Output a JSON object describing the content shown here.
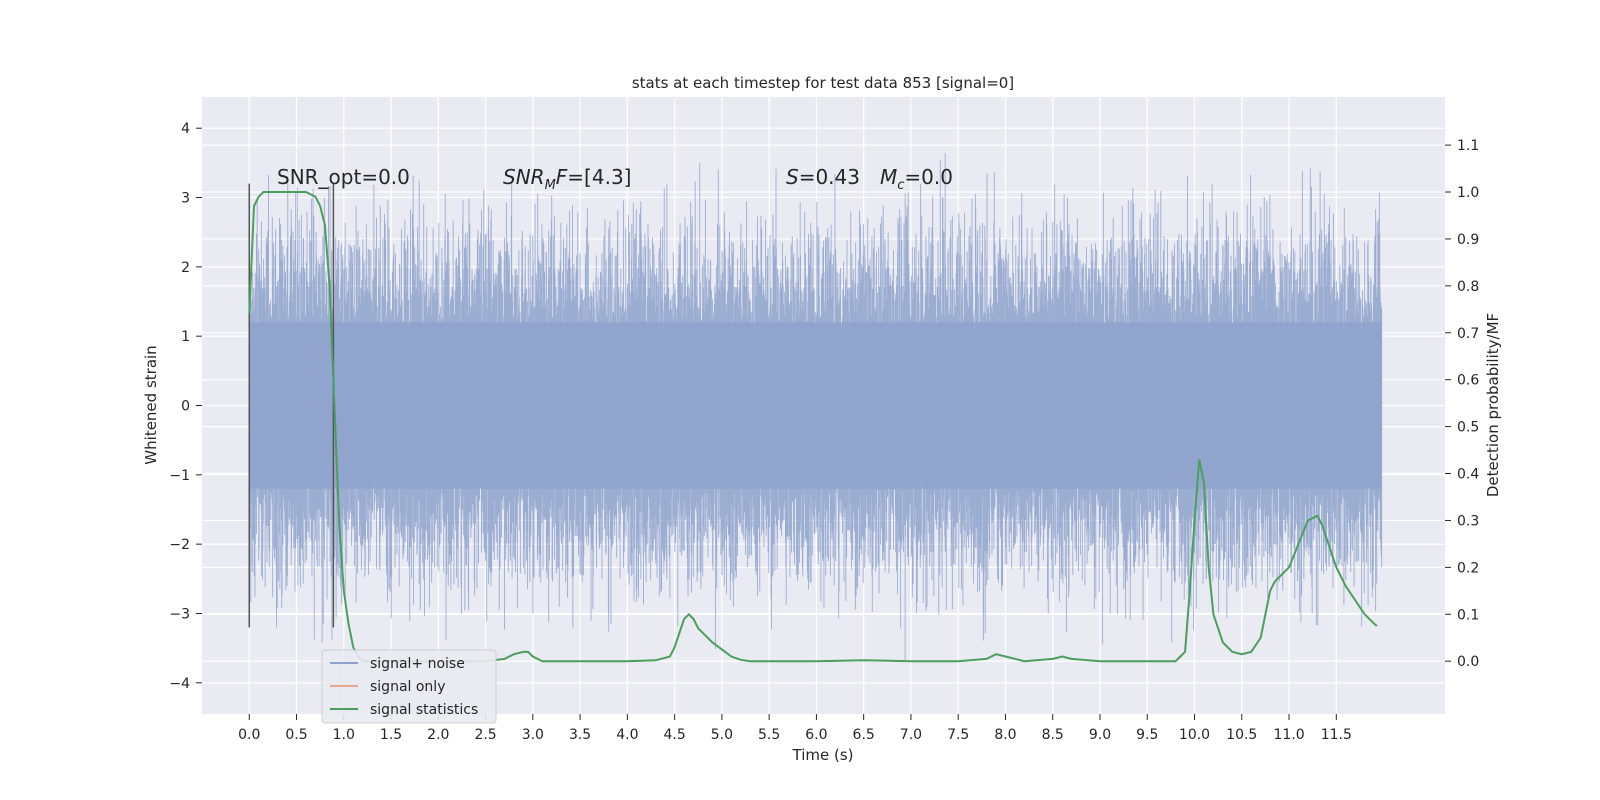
{
  "chart_data": {
    "type": "line",
    "title": "stats at each timestep for test data 853 [signal=0]",
    "xlabel": "Time (s)",
    "ylabel": "Whitened strain",
    "y2label": "Detection probability/MF",
    "xlim": [
      -0.5,
      12.65
    ],
    "ylim": [
      -4.45,
      4.45
    ],
    "y2lim": [
      -0.1125,
      1.2025
    ],
    "x_ticks": [
      "0.0",
      "0.5",
      "1.0",
      "1.5",
      "2.0",
      "2.5",
      "3.0",
      "3.5",
      "4.0",
      "4.5",
      "5.0",
      "5.5",
      "6.0",
      "6.5",
      "7.0",
      "7.5",
      "8.0",
      "8.5",
      "9.0",
      "9.5",
      "10.0",
      "10.5",
      "11.0",
      "11.5"
    ],
    "x_tick_values": [
      0,
      0.5,
      1,
      1.5,
      2,
      2.5,
      3,
      3.5,
      4,
      4.5,
      5,
      5.5,
      6,
      6.5,
      7,
      7.5,
      8,
      8.5,
      9,
      9.5,
      10,
      10.5,
      11,
      11.5
    ],
    "y_ticks": [
      "−4",
      "−3",
      "−2",
      "−1",
      "0",
      "1",
      "2",
      "3",
      "4"
    ],
    "y_tick_values": [
      -4,
      -3,
      -2,
      -1,
      0,
      1,
      2,
      3,
      4
    ],
    "y2_ticks": [
      "0.0",
      "0.1",
      "0.2",
      "0.3",
      "0.4",
      "0.5",
      "0.6",
      "0.7",
      "0.8",
      "0.9",
      "1.0",
      "1.1"
    ],
    "y2_tick_values": [
      0,
      0.1,
      0.2,
      0.3,
      0.4,
      0.5,
      0.6,
      0.7,
      0.8,
      0.9,
      1.0,
      1.1
    ],
    "series": [
      {
        "name": "signal+ noise",
        "color": "#8ea2cd",
        "axis": "left",
        "description": "whitened noise timeseries, 0 to 11.98 s, sample spread roughly ±2 with peaks to about ±4"
      },
      {
        "name": "signal only",
        "color": "#e8a88f",
        "axis": "left",
        "x": [],
        "y": []
      },
      {
        "name": "signal statistics",
        "color": "#4c9e5d",
        "axis": "right",
        "x": [
          0.0,
          0.05,
          0.1,
          0.15,
          0.2,
          0.3,
          0.4,
          0.5,
          0.6,
          0.7,
          0.75,
          0.8,
          0.85,
          0.9,
          0.95,
          1.0,
          1.05,
          1.1,
          1.15,
          1.2,
          1.3,
          1.5,
          2.0,
          2.5,
          2.7,
          2.8,
          2.9,
          2.95,
          3.0,
          3.1,
          3.3,
          3.5,
          4.0,
          4.3,
          4.45,
          4.5,
          4.55,
          4.6,
          4.65,
          4.7,
          4.75,
          4.8,
          4.9,
          5.0,
          5.1,
          5.2,
          5.3,
          5.5,
          6.0,
          6.5,
          7.0,
          7.5,
          7.8,
          7.9,
          8.0,
          8.2,
          8.5,
          8.6,
          8.7,
          9.0,
          9.5,
          9.8,
          9.9,
          9.95,
          10.0,
          10.05,
          10.1,
          10.15,
          10.2,
          10.3,
          10.4,
          10.5,
          10.6,
          10.7,
          10.75,
          10.8,
          10.85,
          10.9,
          10.95,
          11.0,
          11.1,
          11.2,
          11.3,
          11.35,
          11.4,
          11.5,
          11.6,
          11.7,
          11.8,
          11.9,
          11.93
        ],
        "y": [
          0.74,
          0.97,
          0.99,
          1.0,
          1.0,
          1.0,
          1.0,
          1.0,
          1.0,
          0.99,
          0.97,
          0.93,
          0.8,
          0.55,
          0.3,
          0.15,
          0.08,
          0.03,
          0.01,
          0.0,
          0.0,
          0.0,
          0.0,
          0.0,
          0.005,
          0.015,
          0.02,
          0.02,
          0.01,
          0.0,
          0.0,
          0.0,
          0.0,
          0.002,
          0.01,
          0.03,
          0.06,
          0.09,
          0.1,
          0.09,
          0.07,
          0.06,
          0.04,
          0.025,
          0.01,
          0.003,
          0.0,
          0.0,
          0.0,
          0.002,
          0.0,
          0.0,
          0.005,
          0.015,
          0.01,
          0.0,
          0.005,
          0.01,
          0.005,
          0.0,
          0.0,
          0.0,
          0.02,
          0.15,
          0.3,
          0.43,
          0.38,
          0.2,
          0.1,
          0.04,
          0.02,
          0.015,
          0.02,
          0.05,
          0.1,
          0.15,
          0.17,
          0.18,
          0.19,
          0.2,
          0.25,
          0.3,
          0.31,
          0.29,
          0.26,
          0.2,
          0.16,
          0.13,
          0.1,
          0.08,
          0.075
        ]
      }
    ],
    "vlines": [
      {
        "x": 0.0,
        "ymin": -3.2,
        "ymax": 3.2,
        "color": "#555555"
      },
      {
        "x": 0.89,
        "ymin": -3.2,
        "ymax": 3.2,
        "color": "#555555"
      }
    ],
    "annotations": {
      "snr_opt": "SNR_opt=0.0",
      "snr_mf_main": "SNR",
      "snr_mf_sub": "M",
      "snr_mf_rest": "F=[4.3]",
      "s_main": "S",
      "s_rest": "=0.43",
      "mc_main": "M",
      "mc_sub": "c",
      "mc_rest": "=0.0"
    },
    "legend": {
      "placement": "lower-left",
      "entries": [
        "signal+ noise",
        "signal only",
        "signal statistics"
      ]
    },
    "background_color": "#eaeaf2",
    "grid": true
  }
}
